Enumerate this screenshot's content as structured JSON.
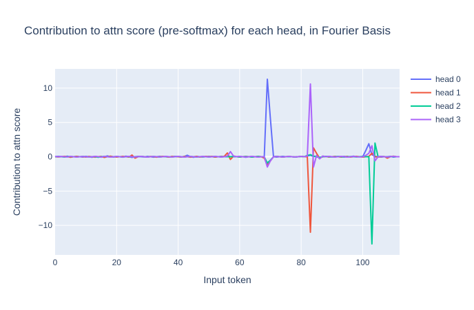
{
  "chart_data": {
    "type": "line",
    "title": "Contribution to attn score (pre-softmax) for each head, in Fourier Basis",
    "xlabel": "Input token",
    "ylabel": "Contribution to attn score",
    "xlim": [
      0,
      112
    ],
    "ylim": [
      -14.3,
      12.8
    ],
    "xticks": [
      0,
      20,
      40,
      60,
      80,
      100
    ],
    "xtick_labels": [
      "0",
      "20",
      "40",
      "60",
      "80",
      "100"
    ],
    "yticks": [
      -10,
      -5,
      0,
      5,
      10
    ],
    "ytick_labels": [
      "−10",
      "−5",
      "0",
      "5",
      "10"
    ],
    "grid": true,
    "plot_bgcolor": "#e5ecf6",
    "legend_position": "top-right (outside plot)",
    "x": [
      0,
      1,
      2,
      3,
      4,
      5,
      6,
      7,
      8,
      9,
      10,
      11,
      12,
      13,
      14,
      15,
      16,
      17,
      18,
      19,
      20,
      21,
      22,
      23,
      24,
      25,
      26,
      27,
      28,
      29,
      30,
      31,
      32,
      33,
      34,
      35,
      36,
      37,
      38,
      39,
      40,
      41,
      42,
      43,
      44,
      45,
      46,
      47,
      48,
      49,
      50,
      51,
      52,
      53,
      54,
      55,
      56,
      57,
      58,
      59,
      60,
      61,
      62,
      63,
      64,
      65,
      66,
      67,
      68,
      69,
      70,
      71,
      72,
      73,
      74,
      75,
      76,
      77,
      78,
      79,
      80,
      81,
      82,
      83,
      84,
      85,
      86,
      87,
      88,
      89,
      90,
      91,
      92,
      93,
      94,
      95,
      96,
      97,
      98,
      99,
      100,
      101,
      102,
      103,
      104,
      105,
      106,
      107,
      108,
      109,
      110,
      111,
      112
    ],
    "series": [
      {
        "name": "head 0",
        "color": "#636efa",
        "values": [
          0,
          0.05,
          0.03,
          0,
          0.08,
          -0.05,
          0,
          0.04,
          0,
          -0.05,
          0.06,
          0,
          -0.08,
          0.05,
          0,
          -0.06,
          0,
          0.12,
          0,
          -0.05,
          0.04,
          0,
          -0.06,
          0.08,
          0,
          -0.1,
          0,
          0.05,
          0,
          -0.04,
          0.05,
          0,
          -0.06,
          0,
          0.06,
          0,
          0,
          -0.05,
          0,
          0.05,
          0,
          -0.05,
          0.03,
          0.22,
          0,
          -0.08,
          0.05,
          0,
          -0.04,
          0,
          0.05,
          0,
          -0.05,
          0,
          0.06,
          0,
          0.1,
          0,
          0,
          0,
          0.06,
          0,
          -0.08,
          0,
          0.05,
          0,
          -0.05,
          0,
          0,
          11.3,
          5.5,
          0,
          -0.05,
          0,
          0.05,
          0,
          0,
          0,
          -0.04,
          0,
          0.05,
          0,
          0.1,
          0.2,
          0.05,
          0,
          -0.1,
          0,
          0,
          0.05,
          0,
          -0.05,
          0.04,
          0,
          0.05,
          -0.05,
          0,
          0.08,
          0,
          0,
          0,
          0.9,
          1.9,
          0.3,
          0.05,
          0,
          -0.05,
          0,
          0,
          0.05,
          -0.05,
          0,
          0
        ]
      },
      {
        "name": "head 1",
        "color": "#ef553b",
        "values": [
          0,
          -0.04,
          0,
          0.06,
          0,
          -0.08,
          0,
          0.05,
          0,
          0,
          -0.05,
          0.04,
          0,
          -0.06,
          0,
          0.05,
          -0.1,
          0,
          0.08,
          0,
          -0.05,
          0,
          0.06,
          0,
          -0.05,
          0.25,
          -0.2,
          0,
          0.06,
          0,
          -0.05,
          0.04,
          0,
          -0.06,
          0,
          0.05,
          0,
          -0.05,
          0.06,
          0,
          0,
          -0.04,
          0.05,
          0,
          -0.06,
          0,
          0.05,
          -0.05,
          0,
          0.06,
          0,
          0.05,
          -0.05,
          0,
          0,
          0.06,
          0.55,
          -0.4,
          0.1,
          0,
          -0.05,
          0,
          0.05,
          0,
          -0.05,
          0,
          0.06,
          0,
          -0.2,
          -1.2,
          -0.6,
          0,
          0.05,
          0,
          -0.05,
          0,
          0.06,
          0,
          -0.04,
          0,
          0.05,
          0,
          0,
          -11.0,
          1.3,
          0.5,
          -0.2,
          0,
          0.05,
          -0.05,
          0,
          0.06,
          0,
          -0.05,
          0,
          0.05,
          -0.05,
          0,
          0.06,
          0,
          -0.05,
          0,
          0.05,
          0.5,
          0,
          -0.05,
          0,
          0.04,
          -0.2,
          0,
          0.08,
          0,
          0
        ]
      },
      {
        "name": "head 2",
        "color": "#00cc96",
        "values": [
          0,
          0.03,
          0,
          -0.05,
          0,
          0.04,
          0,
          -0.03,
          0,
          0.05,
          0,
          -0.04,
          0,
          0.03,
          -0.08,
          0,
          0.05,
          0,
          -0.03,
          0,
          0.04,
          0,
          -0.05,
          0,
          0.03,
          0,
          -0.04,
          0,
          0.05,
          0,
          -0.03,
          0,
          0.04,
          0,
          -0.05,
          0,
          0.03,
          0,
          -0.04,
          0,
          0.05,
          0,
          -0.03,
          0,
          0.04,
          0,
          -0.05,
          0,
          0.03,
          0,
          -0.04,
          0,
          0.05,
          0,
          -0.03,
          0,
          0,
          0,
          0.05,
          0,
          -0.04,
          0,
          0.03,
          0,
          -0.05,
          0,
          0.04,
          0,
          -0.03,
          -0.9,
          -0.5,
          0,
          0.05,
          0,
          -0.04,
          0,
          0.03,
          0,
          -0.05,
          0,
          0.04,
          0,
          0.2,
          0.3,
          0.1,
          0,
          -0.1,
          0,
          0.05,
          0,
          -0.03,
          0,
          0.04,
          0,
          -0.05,
          0,
          0.03,
          0,
          -0.04,
          0,
          0.05,
          0,
          0,
          -12.7,
          2.0,
          0,
          0.05,
          0,
          -0.04,
          0,
          0.03,
          0,
          0
        ]
      },
      {
        "name": "head 3",
        "color": "#ab63fa",
        "values": [
          0.05,
          0,
          0.03,
          0,
          -0.04,
          0.06,
          0,
          -0.05,
          0,
          0.04,
          0,
          -0.03,
          0,
          0.05,
          0,
          -0.04,
          0.06,
          0,
          -0.05,
          0,
          0.04,
          0,
          -0.03,
          0,
          0.05,
          0,
          -0.04,
          0,
          0.06,
          0,
          -0.05,
          0,
          0.04,
          0,
          -0.03,
          0,
          0.05,
          0,
          -0.04,
          0,
          0.06,
          0,
          -0.05,
          0,
          0.04,
          0,
          -0.03,
          0,
          0.05,
          0,
          -0.04,
          0,
          0.06,
          0,
          -0.05,
          0,
          0.1,
          0.75,
          0.1,
          0,
          0.05,
          0,
          -0.04,
          0,
          0.06,
          0,
          -0.05,
          0,
          0,
          -1.5,
          -0.6,
          0,
          0.04,
          0,
          -0.03,
          0,
          0.05,
          0,
          -0.04,
          0,
          0.06,
          0,
          0.1,
          10.6,
          -1.5,
          0.2,
          -0.3,
          0.1,
          0,
          0.05,
          0,
          -0.04,
          0,
          0.06,
          0,
          -0.05,
          0,
          0.04,
          0,
          -0.03,
          0,
          0.2,
          0.5,
          1.6,
          -0.6,
          0,
          0.05,
          0,
          -0.04,
          0,
          0.06,
          0,
          0
        ]
      }
    ]
  }
}
